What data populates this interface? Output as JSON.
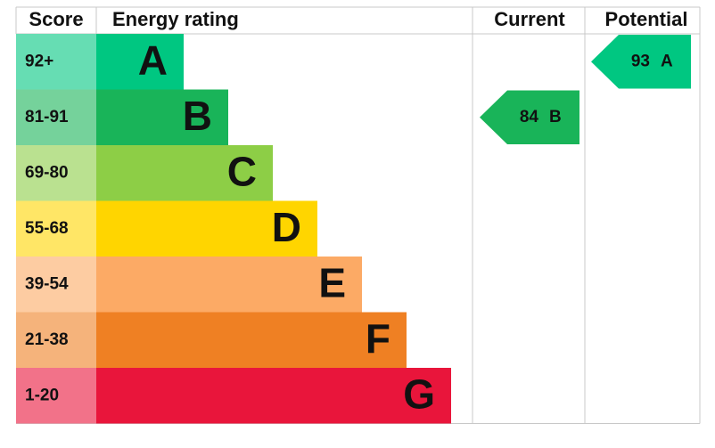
{
  "header": {
    "score": "Score",
    "rating": "Energy rating",
    "current": "Current",
    "potential": "Potential"
  },
  "bands": [
    {
      "score": "92+",
      "letter": "A",
      "color": "#00c781"
    },
    {
      "score": "81-91",
      "letter": "B",
      "color": "#19b459"
    },
    {
      "score": "69-80",
      "letter": "C",
      "color": "#8dce46"
    },
    {
      "score": "55-68",
      "letter": "D",
      "color": "#ffd500"
    },
    {
      "score": "39-54",
      "letter": "E",
      "color": "#fcaa65"
    },
    {
      "score": "21-38",
      "letter": "F",
      "color": "#ef8023"
    },
    {
      "score": "1-20",
      "letter": "G",
      "color": "#e9153b"
    }
  ],
  "current": {
    "value": 84,
    "letter": "B",
    "color": "#19b459"
  },
  "potential": {
    "value": 93,
    "letter": "A",
    "color": "#00c781"
  }
}
